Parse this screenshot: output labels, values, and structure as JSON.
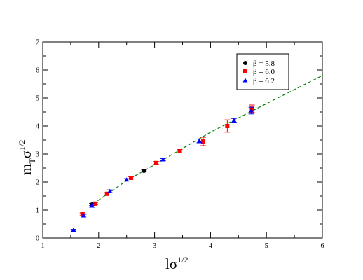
{
  "chart_data": {
    "type": "scatter",
    "xlabel": {
      "main": "lσ",
      "sup": "1/2"
    },
    "ylabel": {
      "main": "m",
      "sub": "T",
      "mid": "σ",
      "sup": "1/2"
    },
    "xlim": [
      1,
      6
    ],
    "ylim": [
      0,
      7
    ],
    "xticks": [
      "1",
      "2",
      "3",
      "4",
      "5",
      "6"
    ],
    "yticks": [
      "0",
      "1",
      "2",
      "3",
      "4",
      "5",
      "6",
      "7"
    ],
    "grid": false,
    "legend_position": "top-right",
    "series": [
      {
        "name": "β = 5.8",
        "color": "#000000",
        "marker": "circle",
        "points": [
          {
            "x": 1.88,
            "y": 1.2,
            "err": 0.04
          },
          {
            "x": 2.81,
            "y": 2.4,
            "err": 0.03
          }
        ]
      },
      {
        "name": "β = 6.0",
        "color": "#ff0000",
        "marker": "square",
        "points": [
          {
            "x": 1.71,
            "y": 0.85,
            "err": 0.05
          },
          {
            "x": 1.94,
            "y": 1.23,
            "err": 0.04
          },
          {
            "x": 2.15,
            "y": 1.58,
            "err": 0.04
          },
          {
            "x": 2.58,
            "y": 2.15,
            "err": 0.04
          },
          {
            "x": 3.03,
            "y": 2.68,
            "err": 0.05
          },
          {
            "x": 3.45,
            "y": 3.1,
            "err": 0.06
          },
          {
            "x": 3.87,
            "y": 3.45,
            "err": 0.15
          },
          {
            "x": 4.3,
            "y": 4.0,
            "err": 0.22
          },
          {
            "x": 4.74,
            "y": 4.62,
            "err": 0.13
          }
        ]
      },
      {
        "name": "β = 6.2",
        "color": "#0000ff",
        "marker": "triangle",
        "points": [
          {
            "x": 1.55,
            "y": 0.28,
            "err": 0.03
          },
          {
            "x": 1.73,
            "y": 0.8,
            "err": 0.05
          },
          {
            "x": 1.88,
            "y": 1.16,
            "err": 0.06
          },
          {
            "x": 2.2,
            "y": 1.67,
            "err": 0.05
          },
          {
            "x": 2.5,
            "y": 2.08,
            "err": 0.04
          },
          {
            "x": 3.15,
            "y": 2.8,
            "err": 0.04
          },
          {
            "x": 3.8,
            "y": 3.47,
            "err": 0.07
          },
          {
            "x": 4.42,
            "y": 4.2,
            "err": 0.07
          },
          {
            "x": 4.73,
            "y": 4.55,
            "err": 0.12
          }
        ]
      }
    ],
    "fit_line": {
      "style": "dashed",
      "color": "#008000",
      "points": [
        [
          1.9,
          1.22
        ],
        [
          2.5,
          2.05
        ],
        [
          3.0,
          2.62
        ],
        [
          4.0,
          3.78
        ],
        [
          5.0,
          4.8
        ],
        [
          6.0,
          5.8
        ]
      ]
    }
  }
}
